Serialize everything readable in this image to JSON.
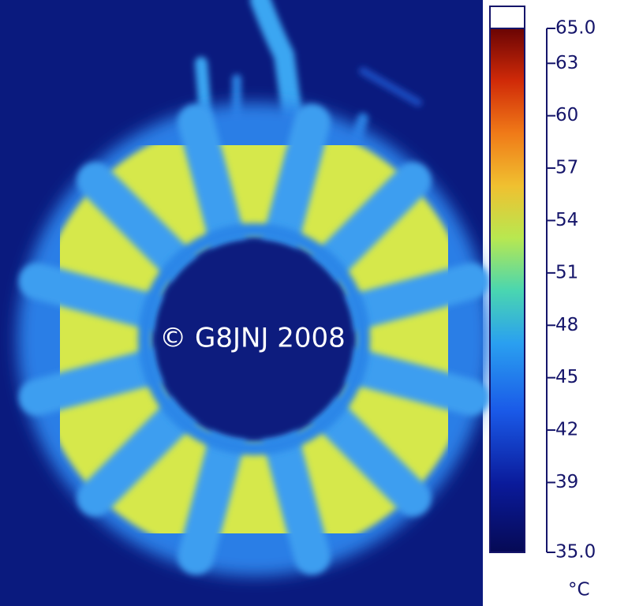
{
  "watermark": "© G8JNJ 2008",
  "colorbar": {
    "lim": [
      35,
      65
    ],
    "unit": "°C",
    "ticks": [
      {
        "value": 65,
        "label": "65.0"
      },
      63,
      60,
      57,
      54,
      51,
      48,
      45,
      42,
      39,
      {
        "value": 35,
        "label": "35.0"
      }
    ]
  }
}
